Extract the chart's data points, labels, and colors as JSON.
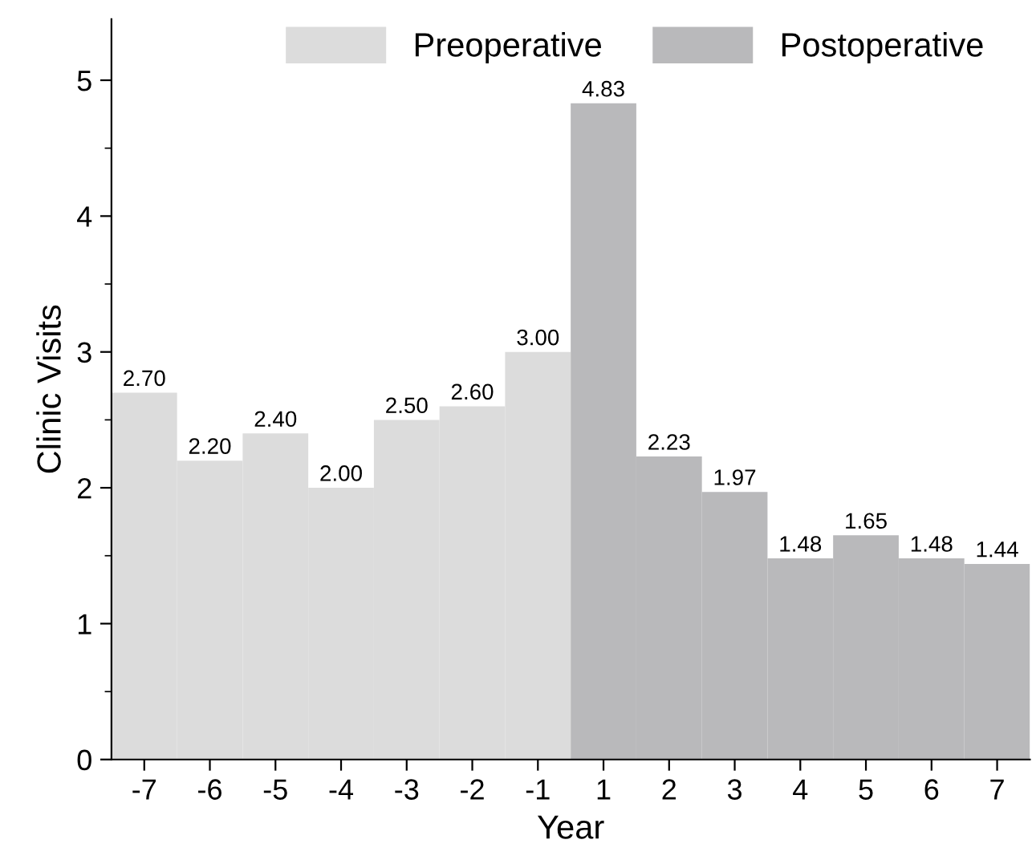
{
  "chart_data": {
    "type": "bar",
    "xlabel": "Year",
    "ylabel": "Clinic Visits",
    "categories": [
      "-7",
      "-6",
      "-5",
      "-4",
      "-3",
      "-2",
      "-1",
      "1",
      "2",
      "3",
      "4",
      "5",
      "6",
      "7"
    ],
    "series": [
      {
        "name": "Preoperative",
        "color": "#dcdcdc",
        "values": [
          2.7,
          2.2,
          2.4,
          2.0,
          2.5,
          2.6,
          3.0,
          null,
          null,
          null,
          null,
          null,
          null,
          null
        ],
        "value_labels": [
          "2.70",
          "2.20",
          "2.40",
          "2.00",
          "2.50",
          "2.60",
          "3.00",
          null,
          null,
          null,
          null,
          null,
          null,
          null
        ]
      },
      {
        "name": "Postoperative",
        "color": "#b9b9bb",
        "values": [
          null,
          null,
          null,
          null,
          null,
          null,
          null,
          4.83,
          2.23,
          1.97,
          1.48,
          1.65,
          1.48,
          1.44
        ],
        "value_labels": [
          null,
          null,
          null,
          null,
          null,
          null,
          null,
          "4.83",
          "2.23",
          "1.97",
          "1.48",
          "1.65",
          "1.48",
          "1.44"
        ]
      }
    ],
    "ylim": [
      0,
      5.45
    ],
    "yticks": [
      0,
      1,
      2,
      3,
      4,
      5
    ],
    "grid": false,
    "legend": "top"
  }
}
